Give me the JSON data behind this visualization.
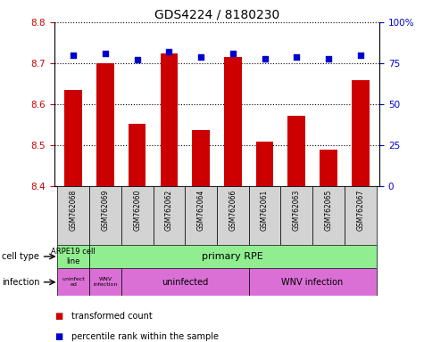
{
  "title": "GDS4224 / 8180230",
  "samples": [
    "GSM762068",
    "GSM762069",
    "GSM762060",
    "GSM762062",
    "GSM762064",
    "GSM762066",
    "GSM762061",
    "GSM762063",
    "GSM762065",
    "GSM762067"
  ],
  "transformed_count": [
    8.635,
    8.7,
    8.553,
    8.725,
    8.538,
    8.715,
    8.51,
    8.573,
    8.49,
    8.658
  ],
  "percentile_rank": [
    80,
    81,
    77,
    82,
    79,
    81,
    78,
    79,
    78,
    80
  ],
  "ylim": [
    8.4,
    8.8
  ],
  "yticks": [
    8.4,
    8.5,
    8.6,
    8.7,
    8.8
  ],
  "right_yticks": [
    0,
    25,
    50,
    75,
    100
  ],
  "right_ylim": [
    0,
    100
  ],
  "bar_color": "#cc0000",
  "dot_color": "#0000cc",
  "grid_color": "#000000",
  "bar_width": 0.55,
  "background_color": "#ffffff",
  "left_ylabel_color": "#cc0000",
  "right_ylabel_color": "#0000cc",
  "cell_type_groups": [
    {
      "label": "ARPE19 cell\nline",
      "color": "#90ee90",
      "start": 0,
      "end": 1
    },
    {
      "label": "primary RPE",
      "color": "#90ee90",
      "start": 1,
      "end": 10
    }
  ],
  "infection_groups": [
    {
      "label": "uninfect\ned",
      "color": "#da70d6",
      "start": 0,
      "end": 1
    },
    {
      "label": "WNV\ninfection",
      "color": "#da70d6",
      "start": 1,
      "end": 2
    },
    {
      "label": "uninfected",
      "color": "#da70d6",
      "start": 2,
      "end": 6
    },
    {
      "label": "WNV infection",
      "color": "#da70d6",
      "start": 6,
      "end": 10
    }
  ],
  "legend_items": [
    {
      "label": "transformed count",
      "color": "#cc0000"
    },
    {
      "label": "percentile rank within the sample",
      "color": "#0000cc"
    }
  ],
  "left_label_cell": "cell type",
  "left_label_infection": "infection",
  "sample_box_color": "#d3d3d3",
  "title_fontsize": 10
}
